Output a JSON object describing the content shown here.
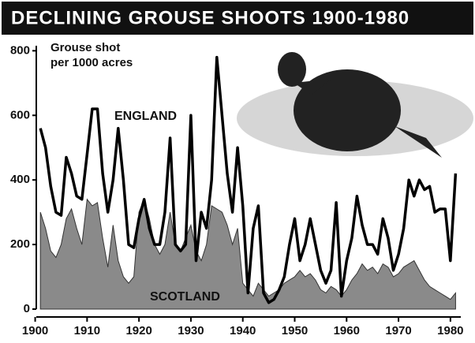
{
  "chart_data": {
    "type": "line",
    "title": "DECLINING GROUSE SHOOTS 1900-1980",
    "ylabel": [
      "Grouse shot",
      "per 1000 acres"
    ],
    "x": [
      1901,
      1902,
      1903,
      1904,
      1905,
      1906,
      1907,
      1908,
      1909,
      1910,
      1911,
      1912,
      1913,
      1914,
      1915,
      1916,
      1917,
      1918,
      1919,
      1920,
      1921,
      1922,
      1923,
      1924,
      1925,
      1926,
      1927,
      1928,
      1929,
      1930,
      1931,
      1932,
      1933,
      1934,
      1935,
      1936,
      1937,
      1938,
      1939,
      1940,
      1941,
      1942,
      1943,
      1944,
      1945,
      1946,
      1947,
      1948,
      1949,
      1950,
      1951,
      1952,
      1953,
      1954,
      1955,
      1956,
      1957,
      1958,
      1959,
      1960,
      1961,
      1962,
      1963,
      1964,
      1965,
      1966,
      1967,
      1968,
      1969,
      1970,
      1971,
      1972,
      1973,
      1974,
      1975,
      1976,
      1977,
      1978,
      1979,
      1980,
      1981
    ],
    "series": [
      {
        "name": "SCOTLAND",
        "color": "#8a8a8a",
        "style": "area",
        "values": [
          300,
          250,
          180,
          160,
          200,
          280,
          310,
          250,
          200,
          340,
          320,
          330,
          220,
          130,
          260,
          150,
          100,
          80,
          100,
          300,
          340,
          280,
          200,
          170,
          200,
          300,
          200,
          180,
          220,
          260,
          180,
          150,
          200,
          320,
          310,
          300,
          260,
          200,
          250,
          80,
          60,
          40,
          80,
          60,
          40,
          50,
          60,
          80,
          90,
          100,
          120,
          100,
          110,
          90,
          60,
          50,
          70,
          60,
          40,
          60,
          90,
          110,
          140,
          120,
          130,
          110,
          140,
          130,
          100,
          110,
          130,
          140,
          150,
          120,
          90,
          70,
          60,
          50,
          40,
          30,
          50
        ]
      },
      {
        "name": "ENGLAND",
        "color": "#000000",
        "style": "line",
        "values": [
          560,
          500,
          380,
          300,
          290,
          470,
          420,
          350,
          340,
          480,
          620,
          620,
          420,
          300,
          400,
          560,
          400,
          200,
          190,
          280,
          340,
          250,
          200,
          200,
          300,
          530,
          200,
          180,
          200,
          600,
          150,
          300,
          250,
          400,
          780,
          600,
          420,
          300,
          500,
          320,
          50,
          250,
          320,
          50,
          20,
          30,
          60,
          100,
          200,
          280,
          150,
          200,
          280,
          200,
          120,
          80,
          120,
          330,
          40,
          150,
          220,
          350,
          260,
          200,
          200,
          170,
          280,
          220,
          120,
          170,
          250,
          400,
          350,
          400,
          370,
          380,
          300,
          310,
          310,
          150,
          420
        ]
      }
    ],
    "xlim": [
      1899,
      1982
    ],
    "ylim": [
      0,
      840
    ],
    "xticks": [
      1900,
      1910,
      1920,
      1930,
      1940,
      1950,
      1960,
      1970,
      1980
    ],
    "yticks": [
      0,
      200,
      400,
      600,
      800
    ]
  }
}
